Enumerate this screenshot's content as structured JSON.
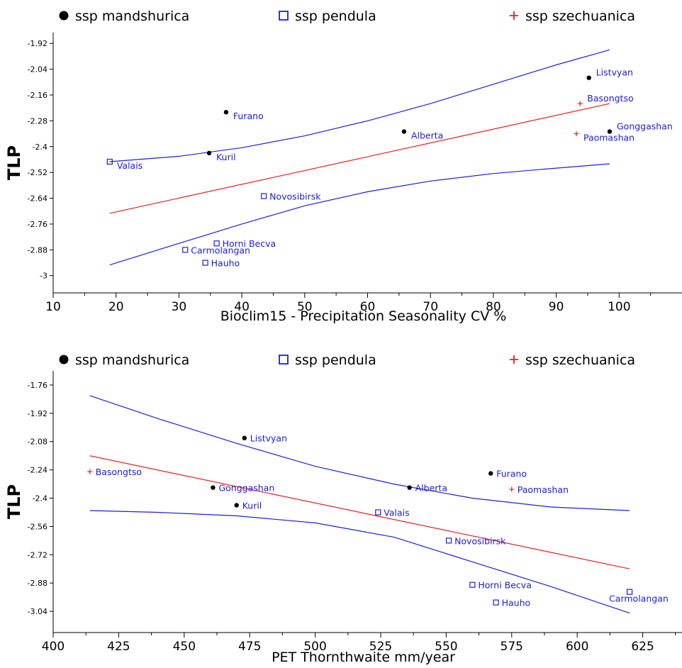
{
  "legend": [
    {
      "label": "ssp mandshurica",
      "marker": "dot",
      "color": "#000000"
    },
    {
      "label": "ssp pendula",
      "marker": "square",
      "color": "#1f1fd6"
    },
    {
      "label": "ssp szechuanica",
      "marker": "plus",
      "color": "#e02020"
    }
  ],
  "colors": {
    "fit_line": "#e02020",
    "ci_band": "#1f1fd6",
    "axis": "#000000",
    "label_text": "#1c1ccf"
  },
  "chart_data": [
    {
      "type": "scatter",
      "xlabel": "Bioclim15 - Precipitation Seasonality CV %",
      "ylabel": "TLP",
      "xlim": [
        10,
        110
      ],
      "ylim": [
        -3.08,
        -1.87
      ],
      "xticks": [
        10,
        20,
        30,
        40,
        50,
        60,
        70,
        80,
        90,
        100
      ],
      "yticks": [
        -1.92,
        -2.04,
        -2.16,
        -2.28,
        -2.4,
        -2.52,
        -2.64,
        -2.76,
        -2.88,
        -3.0
      ],
      "grid": false,
      "legend_position": "top",
      "series": [
        {
          "name": "ssp mandshurica",
          "marker": "dot",
          "points": [
            {
              "x": 37.5,
              "y": -2.24,
              "label": "Furano"
            },
            {
              "x": 34.8,
              "y": -2.43,
              "label": "Kuril"
            },
            {
              "x": 65.8,
              "y": -2.33,
              "label": "Alberta"
            },
            {
              "x": 95.2,
              "y": -2.08,
              "label": "Listvyan"
            },
            {
              "x": 98.5,
              "y": -2.33,
              "label": "Gonggashan"
            }
          ]
        },
        {
          "name": "ssp pendula",
          "marker": "square",
          "points": [
            {
              "x": 19.0,
              "y": -2.47,
              "label": "Valais"
            },
            {
              "x": 43.5,
              "y": -2.63,
              "label": "Novosibirsk"
            },
            {
              "x": 36.0,
              "y": -2.85,
              "label": "Horni Becva"
            },
            {
              "x": 31.0,
              "y": -2.88,
              "label": "Carmolangan"
            },
            {
              "x": 34.2,
              "y": -2.94,
              "label": "Hauho"
            }
          ]
        },
        {
          "name": "ssp szechuanica",
          "marker": "plus",
          "points": [
            {
              "x": 93.8,
              "y": -2.2,
              "label": "Basongtso"
            },
            {
              "x": 93.2,
              "y": -2.34,
              "label": "Paomashan"
            }
          ]
        }
      ],
      "fit_line": {
        "x": [
          19,
          98.5
        ],
        "y": [
          -2.71,
          -2.2
        ]
      },
      "ci_upper": {
        "x": [
          19,
          30,
          40,
          50,
          60,
          70,
          80,
          90,
          98.5
        ],
        "y": [
          -2.47,
          -2.445,
          -2.405,
          -2.35,
          -2.28,
          -2.2,
          -2.11,
          -2.02,
          -1.95
        ]
      },
      "ci_lower": {
        "x": [
          19,
          30,
          40,
          50,
          60,
          70,
          80,
          90,
          98.5
        ],
        "y": [
          -2.95,
          -2.85,
          -2.76,
          -2.675,
          -2.61,
          -2.56,
          -2.525,
          -2.5,
          -2.48
        ]
      },
      "point_label_offsets": {
        "Furano": "right-below",
        "Kuril": "right-below",
        "Alberta": "right-below",
        "Listvyan": "right-above",
        "Gonggashan": "right-above",
        "Valais": "right-below",
        "Novosibirsk": "right",
        "Horni Becva": "right",
        "Carmolangan": "right",
        "Hauho": "right",
        "Basongtso": "right-above",
        "Paomashan": "right-below"
      }
    },
    {
      "type": "scatter",
      "xlabel": "PET Thornthwaite mm/year",
      "ylabel": "TLP",
      "xlim": [
        400,
        640
      ],
      "ylim": [
        -3.16,
        -1.68
      ],
      "xticks": [
        400,
        425,
        450,
        475,
        500,
        525,
        550,
        575,
        600,
        625
      ],
      "yticks": [
        -1.76,
        -1.92,
        -2.08,
        -2.24,
        -2.4,
        -2.56,
        -2.72,
        -2.88,
        -3.04
      ],
      "grid": false,
      "legend_position": "top",
      "series": [
        {
          "name": "ssp mandshurica",
          "marker": "dot",
          "points": [
            {
              "x": 473,
              "y": -2.06,
              "label": "Listvyan"
            },
            {
              "x": 461,
              "y": -2.34,
              "label": "Gonggashan"
            },
            {
              "x": 470,
              "y": -2.44,
              "label": "Kuril"
            },
            {
              "x": 536,
              "y": -2.34,
              "label": "Alberta"
            },
            {
              "x": 567,
              "y": -2.26,
              "label": "Furano"
            }
          ]
        },
        {
          "name": "ssp pendula",
          "marker": "square",
          "points": [
            {
              "x": 524,
              "y": -2.48,
              "label": "Valais"
            },
            {
              "x": 551,
              "y": -2.64,
              "label": "Novosibirsk"
            },
            {
              "x": 560,
              "y": -2.89,
              "label": "Horni Becva"
            },
            {
              "x": 569,
              "y": -2.99,
              "label": "Hauho"
            },
            {
              "x": 620,
              "y": -2.93,
              "label": "Carmolangan"
            }
          ]
        },
        {
          "name": "ssp szechuanica",
          "marker": "plus",
          "points": [
            {
              "x": 414,
              "y": -2.25,
              "label": "Basongtso"
            },
            {
              "x": 575,
              "y": -2.35,
              "label": "Paomashan"
            }
          ]
        }
      ],
      "fit_line": {
        "x": [
          414,
          620
        ],
        "y": [
          -2.16,
          -2.8
        ]
      },
      "ci_upper": {
        "x": [
          414,
          440,
          470,
          500,
          530,
          560,
          590,
          620
        ],
        "y": [
          -1.82,
          -1.95,
          -2.09,
          -2.22,
          -2.32,
          -2.4,
          -2.45,
          -2.47
        ]
      },
      "ci_lower": {
        "x": [
          414,
          440,
          470,
          500,
          530,
          560,
          590,
          620
        ],
        "y": [
          -2.47,
          -2.48,
          -2.5,
          -2.54,
          -2.62,
          -2.76,
          -2.9,
          -3.05
        ]
      },
      "point_label_offsets": {
        "Listvyan": "right",
        "Gonggashan": "right",
        "Kuril": "right",
        "Alberta": "right",
        "Furano": "right",
        "Valais": "right",
        "Novosibirsk": "right",
        "Horni Becva": "right",
        "Hauho": "right",
        "Carmolangan": "below",
        "Basongtso": "right",
        "Paomashan": "right"
      }
    }
  ]
}
